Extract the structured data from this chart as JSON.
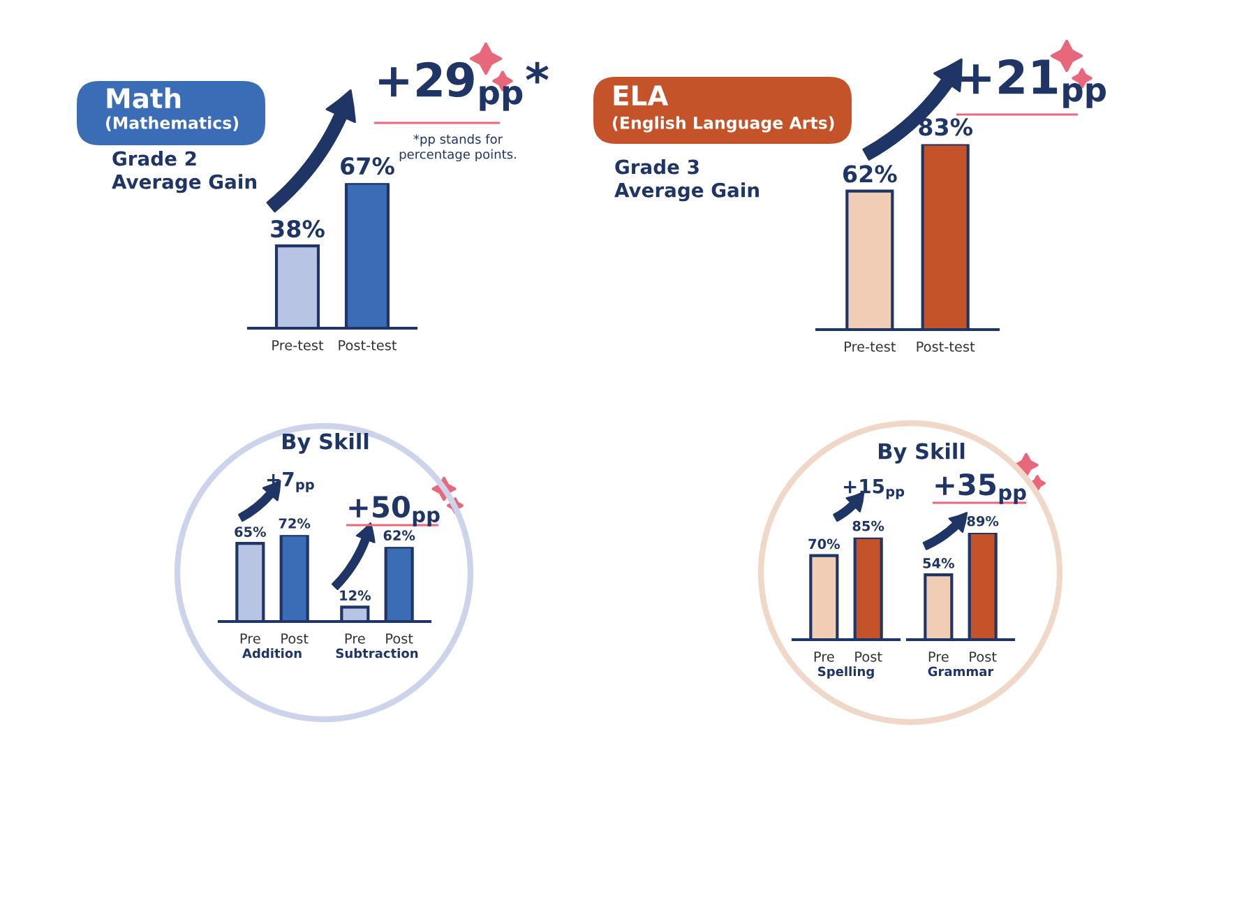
{
  "chart_data": [
    {
      "type": "bar",
      "title": "Math",
      "subtitle": "(Mathematics)",
      "categories": [
        "Pre-test",
        "Post-test"
      ],
      "values": [
        38,
        67
      ],
      "colors": [
        "#b8c4e4",
        "#3a6db5"
      ],
      "value_labels": [
        "38%",
        "67%"
      ],
      "tick_labels": "x",
      "annotations": [
        "Grade 2\nAverage Gain",
        "+29$_{pp}$*",
        "*pp stands for\npercentage points."
      ]
    },
    {
      "type": "bar",
      "title": "ELA",
      "subtitle": "(English Language Arts)",
      "categories": [
        "Pre-test",
        "Post-test"
      ],
      "values": [
        62,
        83
      ],
      "colors": [
        "#f0cdb4",
        "#c4532a"
      ],
      "value_labels": [
        "62%",
        "83%"
      ],
      "tick_labels": "x",
      "annotations": [
        "Grade 3\nAverage Gain",
        "+21$_{pp}$"
      ]
    },
    {
      "type": "bar",
      "xlabel": "Addition",
      "categories": [
        "Pre",
        "Post"
      ],
      "values": [
        65,
        72
      ],
      "colors": [
        "#b8c4e4",
        "#3a6db5"
      ],
      "value_labels": [
        "65%",
        "72%"
      ],
      "tick_labels": "x",
      "annotations": [
        "By Skill",
        "+7$_{pp}$"
      ]
    },
    {
      "type": "bar",
      "xlabel": "Subtraction",
      "categories": [
        "Pre",
        "Post"
      ],
      "values": [
        12,
        62
      ],
      "colors": [
        "#b8c4e4",
        "#3a6db5"
      ],
      "value_labels": [
        "12%",
        "62%"
      ],
      "tick_labels": "x",
      "annotations": [
        "+50$_{pp}$"
      ]
    },
    {
      "type": "bar",
      "xlabel": "Spelling",
      "categories": [
        "Pre",
        "Post"
      ],
      "values": [
        70,
        85
      ],
      "colors": [
        "#f0cdb4",
        "#c4532a"
      ],
      "value_labels": [
        "70%",
        "85%"
      ],
      "tick_labels": "x",
      "annotations": [
        "By Skill",
        "+15$_{pp}$"
      ]
    },
    {
      "type": "bar",
      "xlabel": "Grammar",
      "categories": [
        "Pre",
        "Post"
      ],
      "values": [
        54,
        89
      ],
      "colors": [
        "#f0cdb4",
        "#c4532a"
      ],
      "value_labels": [
        "54%",
        "89%"
      ],
      "tick_labels": "x",
      "annotations": [
        "+35$_{pp}$"
      ]
    }
  ]
}
